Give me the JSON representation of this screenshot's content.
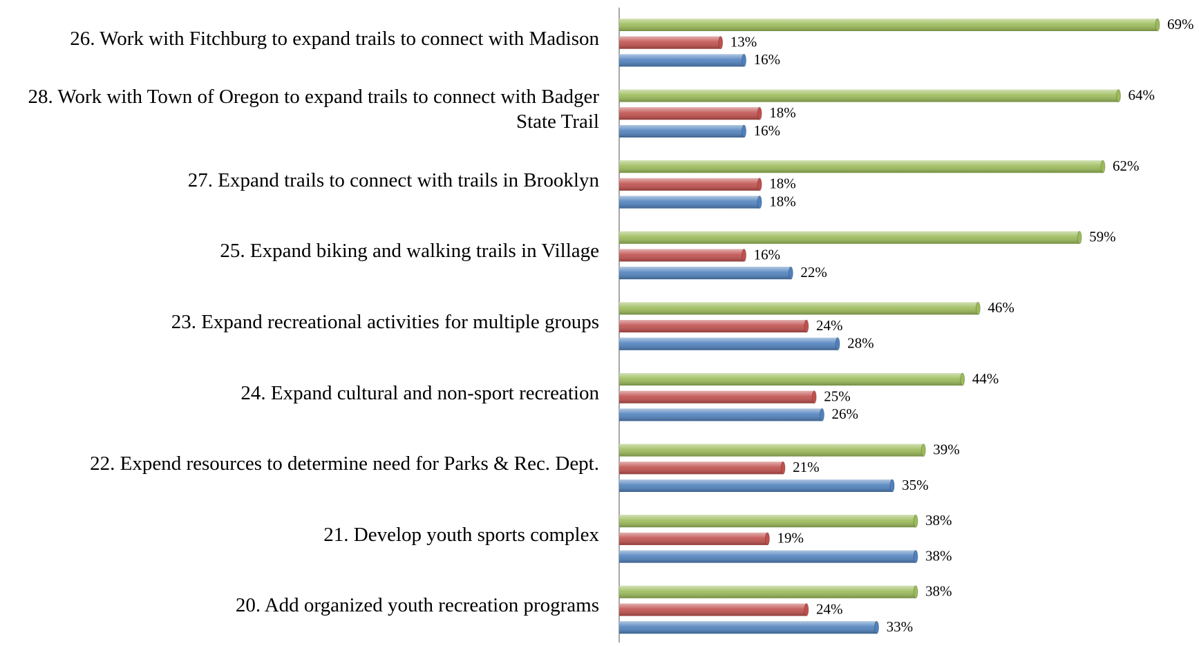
{
  "chart_data": {
    "type": "bar",
    "orientation": "horizontal",
    "categories": [
      "26. Work with Fitchburg to expand trails to connect with Madison",
      "28. Work with Town of Oregon to expand trails to connect with Badger State Trail",
      "27. Expand trails to connect with trails in Brooklyn",
      "25. Expand biking and walking trails in Village",
      "23. Expand recreational activities for multiple groups",
      "24. Expand cultural and non-sport recreation",
      "22. Expend resources to determine need for Parks & Rec. Dept.",
      "21. Develop youth sports complex",
      "20. Add organized youth recreation programs"
    ],
    "series": [
      {
        "color": "#9bbb59",
        "values": [
          69,
          64,
          62,
          59,
          46,
          44,
          39,
          38,
          38
        ],
        "value_labels": [
          "69%",
          "64%",
          "62%",
          "59%",
          "46%",
          "44%",
          "39%",
          "38%",
          "38%"
        ]
      },
      {
        "color": "#c0504d",
        "values": [
          13,
          18,
          18,
          16,
          24,
          25,
          21,
          19,
          24
        ],
        "value_labels": [
          "13%",
          "18%",
          "18%",
          "16%",
          "24%",
          "25%",
          "21%",
          "19%",
          "24%"
        ]
      },
      {
        "color": "#4f81bd",
        "values": [
          16,
          16,
          18,
          22,
          28,
          26,
          35,
          38,
          33
        ],
        "value_labels": [
          "16%",
          "16%",
          "18%",
          "22%",
          "28%",
          "26%",
          "35%",
          "38%",
          "33%"
        ]
      }
    ]
  }
}
